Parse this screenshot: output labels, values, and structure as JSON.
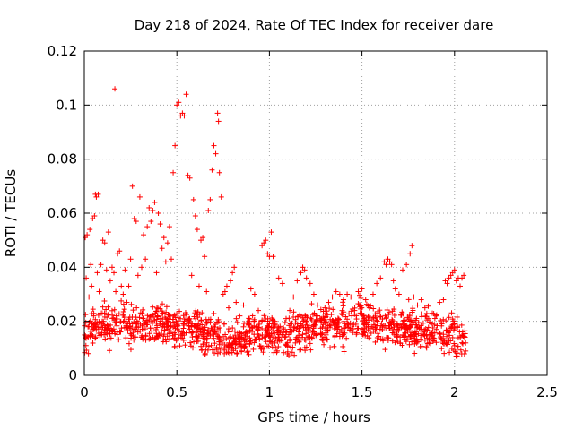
{
  "chart_data": {
    "type": "scatter",
    "title": "Day 218 of 2024, Rate Of TEC Index for receiver dare",
    "xlabel": "GPS time / hours",
    "ylabel": "ROTI / TECUs",
    "xlim": [
      0,
      2.5
    ],
    "ylim": [
      0,
      0.12
    ],
    "xticks": [
      0,
      0.5,
      1,
      1.5,
      2,
      2.5
    ],
    "xtick_labels": [
      "0",
      "0.5",
      "1",
      "1.5",
      "2",
      "2.5"
    ],
    "yticks": [
      0,
      0.02,
      0.04,
      0.06,
      0.08,
      0.1,
      0.12
    ],
    "ytick_labels": [
      "0",
      "0.02",
      "0.04",
      "0.06",
      "0.08",
      "0.1",
      "0.12"
    ],
    "grid": true,
    "marker": "plus",
    "color": "#ff0000",
    "series": [
      {
        "name": "ROTI",
        "points": [
          [
            0.005,
            0.051
          ],
          [
            0.01,
            0.036
          ],
          [
            0.015,
            0.052
          ],
          [
            0.02,
            0.018
          ],
          [
            0.025,
            0.029
          ],
          [
            0.03,
            0.054
          ],
          [
            0.035,
            0.041
          ],
          [
            0.04,
            0.033
          ],
          [
            0.045,
            0.058
          ],
          [
            0.05,
            0.022
          ],
          [
            0.055,
            0.059
          ],
          [
            0.06,
            0.067
          ],
          [
            0.065,
            0.066
          ],
          [
            0.07,
            0.038
          ],
          [
            0.075,
            0.067
          ],
          [
            0.08,
            0.031
          ],
          [
            0.09,
            0.041
          ],
          [
            0.1,
            0.05
          ],
          [
            0.11,
            0.049
          ],
          [
            0.12,
            0.039
          ],
          [
            0.13,
            0.053
          ],
          [
            0.14,
            0.035
          ],
          [
            0.15,
            0.04
          ],
          [
            0.16,
            0.038
          ],
          [
            0.165,
            0.106
          ],
          [
            0.17,
            0.031
          ],
          [
            0.18,
            0.045
          ],
          [
            0.19,
            0.046
          ],
          [
            0.2,
            0.033
          ],
          [
            0.21,
            0.03
          ],
          [
            0.22,
            0.039
          ],
          [
            0.23,
            0.027
          ],
          [
            0.24,
            0.033
          ],
          [
            0.25,
            0.043
          ],
          [
            0.26,
            0.07
          ],
          [
            0.27,
            0.058
          ],
          [
            0.28,
            0.057
          ],
          [
            0.29,
            0.037
          ],
          [
            0.3,
            0.066
          ],
          [
            0.31,
            0.04
          ],
          [
            0.32,
            0.052
          ],
          [
            0.33,
            0.043
          ],
          [
            0.34,
            0.055
          ],
          [
            0.35,
            0.062
          ],
          [
            0.36,
            0.057
          ],
          [
            0.37,
            0.061
          ],
          [
            0.38,
            0.064
          ],
          [
            0.39,
            0.038
          ],
          [
            0.4,
            0.06
          ],
          [
            0.41,
            0.056
          ],
          [
            0.42,
            0.047
          ],
          [
            0.43,
            0.051
          ],
          [
            0.44,
            0.042
          ],
          [
            0.45,
            0.049
          ],
          [
            0.46,
            0.055
          ],
          [
            0.47,
            0.043
          ],
          [
            0.48,
            0.075
          ],
          [
            0.49,
            0.085
          ],
          [
            0.5,
            0.1
          ],
          [
            0.51,
            0.101
          ],
          [
            0.52,
            0.096
          ],
          [
            0.53,
            0.097
          ],
          [
            0.54,
            0.096
          ],
          [
            0.55,
            0.104
          ],
          [
            0.56,
            0.074
          ],
          [
            0.57,
            0.073
          ],
          [
            0.58,
            0.037
          ],
          [
            0.59,
            0.065
          ],
          [
            0.6,
            0.059
          ],
          [
            0.61,
            0.054
          ],
          [
            0.62,
            0.033
          ],
          [
            0.63,
            0.05
          ],
          [
            0.64,
            0.051
          ],
          [
            0.65,
            0.044
          ],
          [
            0.66,
            0.031
          ],
          [
            0.67,
            0.061
          ],
          [
            0.68,
            0.065
          ],
          [
            0.69,
            0.076
          ],
          [
            0.7,
            0.085
          ],
          [
            0.71,
            0.082
          ],
          [
            0.72,
            0.097
          ],
          [
            0.725,
            0.094
          ],
          [
            0.73,
            0.075
          ],
          [
            0.74,
            0.066
          ],
          [
            0.75,
            0.03
          ],
          [
            0.76,
            0.031
          ],
          [
            0.77,
            0.033
          ],
          [
            0.78,
            0.025
          ],
          [
            0.79,
            0.035
          ],
          [
            0.8,
            0.038
          ],
          [
            0.81,
            0.04
          ],
          [
            0.82,
            0.027
          ],
          [
            0.84,
            0.022
          ],
          [
            0.86,
            0.026
          ],
          [
            0.88,
            0.016
          ],
          [
            0.9,
            0.032
          ],
          [
            0.92,
            0.03
          ],
          [
            0.94,
            0.024
          ],
          [
            0.96,
            0.048
          ],
          [
            0.97,
            0.049
          ],
          [
            0.98,
            0.05
          ],
          [
            0.99,
            0.045
          ],
          [
            1.0,
            0.044
          ],
          [
            1.01,
            0.053
          ],
          [
            1.02,
            0.044
          ],
          [
            1.03,
            0.02
          ],
          [
            1.05,
            0.036
          ],
          [
            1.07,
            0.034
          ],
          [
            1.09,
            0.021
          ],
          [
            1.11,
            0.024
          ],
          [
            1.13,
            0.029
          ],
          [
            1.15,
            0.035
          ],
          [
            1.17,
            0.038
          ],
          [
            1.18,
            0.04
          ],
          [
            1.19,
            0.039
          ],
          [
            1.2,
            0.036
          ],
          [
            1.22,
            0.034
          ],
          [
            1.24,
            0.03
          ],
          [
            1.26,
            0.026
          ],
          [
            1.28,
            0.021
          ],
          [
            1.3,
            0.025
          ],
          [
            1.32,
            0.027
          ],
          [
            1.34,
            0.029
          ],
          [
            1.36,
            0.031
          ],
          [
            1.38,
            0.03
          ],
          [
            1.4,
            0.028
          ],
          [
            1.42,
            0.03
          ],
          [
            1.44,
            0.029
          ],
          [
            1.46,
            0.024
          ],
          [
            1.48,
            0.031
          ],
          [
            1.5,
            0.032
          ],
          [
            1.52,
            0.028
          ],
          [
            1.54,
            0.025
          ],
          [
            1.56,
            0.03
          ],
          [
            1.58,
            0.034
          ],
          [
            1.6,
            0.036
          ],
          [
            1.62,
            0.042
          ],
          [
            1.63,
            0.041
          ],
          [
            1.64,
            0.043
          ],
          [
            1.65,
            0.042
          ],
          [
            1.66,
            0.041
          ],
          [
            1.67,
            0.035
          ],
          [
            1.68,
            0.032
          ],
          [
            1.7,
            0.03
          ],
          [
            1.72,
            0.039
          ],
          [
            1.74,
            0.041
          ],
          [
            1.76,
            0.045
          ],
          [
            1.77,
            0.048
          ],
          [
            1.78,
            0.029
          ],
          [
            1.8,
            0.026
          ],
          [
            1.82,
            0.028
          ],
          [
            1.84,
            0.025
          ],
          [
            1.86,
            0.021
          ],
          [
            1.88,
            0.023
          ],
          [
            1.9,
            0.022
          ],
          [
            1.92,
            0.027
          ],
          [
            1.94,
            0.028
          ],
          [
            1.95,
            0.035
          ],
          [
            1.96,
            0.034
          ],
          [
            1.97,
            0.036
          ],
          [
            1.98,
            0.037
          ],
          [
            1.99,
            0.038
          ],
          [
            2.0,
            0.039
          ],
          [
            2.01,
            0.035
          ],
          [
            2.02,
            0.036
          ],
          [
            2.03,
            0.033
          ],
          [
            2.04,
            0.036
          ],
          [
            2.05,
            0.037
          ],
          [
            2.06,
            0.012
          ],
          [
            2.06,
            0.009
          ]
        ],
        "band": {
          "x_start": 0.0,
          "x_end": 2.06,
          "baseline": [
            [
              0.0,
              0.016
            ],
            [
              0.1,
              0.018
            ],
            [
              0.2,
              0.019
            ],
            [
              0.3,
              0.018
            ],
            [
              0.4,
              0.019
            ],
            [
              0.5,
              0.018
            ],
            [
              0.6,
              0.017
            ],
            [
              0.7,
              0.015
            ],
            [
              0.8,
              0.012
            ],
            [
              0.9,
              0.016
            ],
            [
              1.0,
              0.015
            ],
            [
              1.1,
              0.014
            ],
            [
              1.2,
              0.017
            ],
            [
              1.3,
              0.018
            ],
            [
              1.4,
              0.019
            ],
            [
              1.5,
              0.02
            ],
            [
              1.6,
              0.019
            ],
            [
              1.7,
              0.018
            ],
            [
              1.8,
              0.017
            ],
            [
              1.9,
              0.016
            ],
            [
              2.0,
              0.014
            ],
            [
              2.06,
              0.013
            ]
          ],
          "spread": 0.007,
          "count": 1300
        }
      }
    ]
  }
}
